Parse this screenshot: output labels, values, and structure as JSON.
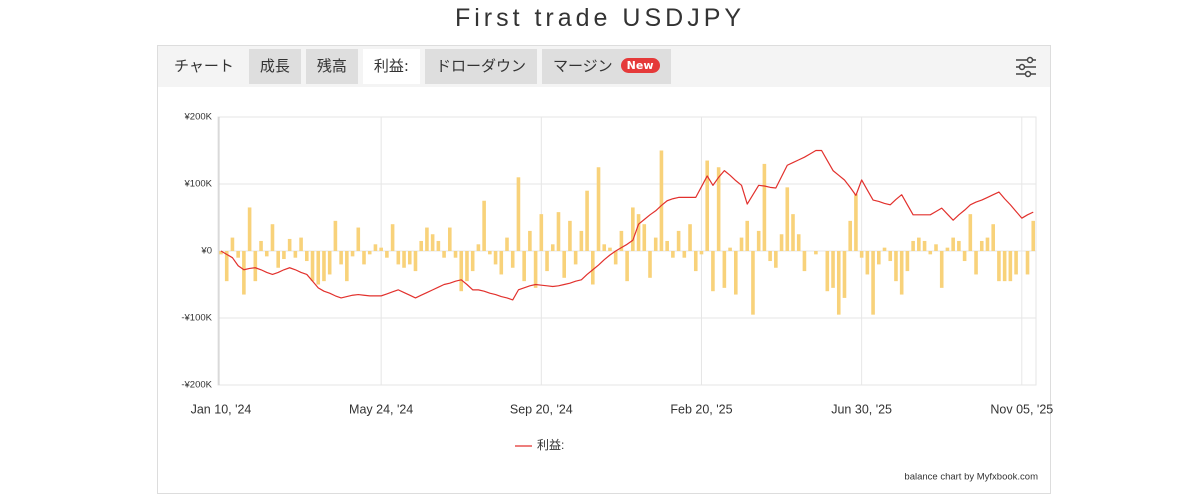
{
  "title": "First trade USDJPY",
  "tabs": [
    {
      "label": "チャート"
    },
    {
      "label": "成長"
    },
    {
      "label": "残高"
    },
    {
      "label": "利益:"
    },
    {
      "label": "ドローダウン"
    },
    {
      "label": "マージン",
      "badge": "New"
    }
  ],
  "active_tab": 3,
  "chart_data": {
    "type": "bar",
    "grid": true,
    "legend": "bottom",
    "credit": "balance chart by Myfxbook.com",
    "categories": [
      "Jan 10, '24",
      null,
      null,
      null,
      null,
      null,
      null,
      null,
      null,
      null,
      null,
      null,
      null,
      null,
      null,
      null,
      null,
      null,
      null,
      null,
      null,
      null,
      null,
      null,
      null,
      null,
      null,
      null,
      "May 24, '24",
      null,
      null,
      null,
      null,
      null,
      null,
      null,
      null,
      null,
      null,
      null,
      null,
      null,
      null,
      null,
      null,
      null,
      null,
      null,
      null,
      null,
      null,
      null,
      null,
      null,
      null,
      null,
      "Sep 20, '24",
      null,
      null,
      null,
      null,
      null,
      null,
      null,
      null,
      null,
      null,
      null,
      null,
      null,
      null,
      null,
      null,
      null,
      null,
      null,
      null,
      null,
      null,
      null,
      null,
      null,
      null,
      null,
      "Feb 20, '25",
      null,
      null,
      null,
      null,
      null,
      null,
      null,
      null,
      null,
      null,
      null,
      null,
      null,
      null,
      null,
      null,
      null,
      null,
      null,
      null,
      null,
      null,
      null,
      null,
      null,
      null,
      null,
      "Jun 30, '25",
      null,
      null,
      null,
      null,
      null,
      null,
      null,
      null,
      null,
      null,
      null,
      null,
      null,
      null,
      null,
      null,
      null,
      null,
      null,
      null,
      null,
      null,
      null,
      null,
      null,
      null,
      null,
      "Nov 05, '25",
      null,
      null
    ],
    "ylim": [
      -200000,
      200000
    ],
    "yticks": [
      {
        "value": -200000,
        "label": "-¥200K"
      },
      {
        "value": -100000,
        "label": "-¥100K"
      },
      {
        "value": 0,
        "label": "¥0"
      },
      {
        "value": 100000,
        "label": "¥100K"
      },
      {
        "value": 200000,
        "label": "¥200K"
      }
    ],
    "series": [
      {
        "type": "bar",
        "color": "#f8d27a",
        "values": [
          -5000,
          -45000,
          20000,
          -10000,
          -65000,
          65000,
          -45000,
          15000,
          -8000,
          40000,
          -25000,
          -12000,
          18000,
          -10000,
          20000,
          -15000,
          -45000,
          -50000,
          -45000,
          -35000,
          45000,
          -20000,
          -45000,
          -8000,
          35000,
          -20000,
          -5000,
          10000,
          5000,
          -10000,
          40000,
          -20000,
          -25000,
          -20000,
          -30000,
          15000,
          35000,
          25000,
          15000,
          -10000,
          35000,
          -10000,
          -60000,
          -45000,
          -30000,
          10000,
          75000,
          -5000,
          -20000,
          -35000,
          20000,
          -25000,
          110000,
          -45000,
          30000,
          -55000,
          55000,
          -30000,
          10000,
          58000,
          -40000,
          45000,
          -20000,
          30000,
          90000,
          -50000,
          125000,
          10000,
          5000,
          -20000,
          30000,
          -45000,
          65000,
          55000,
          40000,
          -40000,
          20000,
          150000,
          15000,
          -10000,
          30000,
          -10000,
          40000,
          -30000,
          -5000,
          135000,
          -60000,
          125000,
          -55000,
          5000,
          -65000,
          20000,
          45000,
          -95000,
          30000,
          130000,
          -15000,
          -25000,
          25000,
          95000,
          55000,
          25000,
          -30000,
          0,
          -5000,
          0,
          -60000,
          -55000,
          -95000,
          -70000,
          45000,
          85000,
          -10000,
          -35000,
          -95000,
          -20000,
          5000,
          -15000,
          -45000,
          -65000,
          -30000,
          15000,
          20000,
          15000,
          -5000,
          10000,
          -55000,
          5000,
          20000,
          15000,
          -15000,
          55000,
          -35000,
          15000,
          20000,
          40000,
          -45000,
          -45000,
          -45000,
          -35000,
          0,
          -35000,
          45000
        ]
      },
      {
        "type": "line",
        "name": "利益:",
        "color": "#e2312d",
        "values": [
          0,
          -5000,
          -10000,
          -22000,
          -28000,
          -26000,
          -25000,
          -28000,
          -32000,
          -35000,
          -32000,
          -28000,
          -25000,
          -28000,
          -32000,
          -35000,
          -45000,
          -55000,
          -60000,
          -63000,
          -67000,
          -70000,
          -68000,
          -66000,
          -65000,
          -66000,
          -67000,
          -67000,
          -67000,
          -64000,
          -61000,
          -58000,
          -62000,
          -66000,
          -70000,
          -66000,
          -62000,
          -58000,
          -54000,
          -50000,
          -48000,
          -45000,
          -43000,
          -50000,
          -58000,
          -58000,
          -60000,
          -63000,
          -65000,
          -68000,
          -70000,
          -73000,
          -58000,
          -55000,
          -52000,
          -50000,
          -51000,
          -52000,
          -53000,
          -52000,
          -50000,
          -48000,
          -45000,
          -43000,
          -35000,
          -28000,
          -21000,
          -13000,
          -6000,
          0,
          5000,
          10000,
          16000,
          40000,
          47000,
          54000,
          60000,
          68000,
          75000,
          78000,
          80000,
          80000,
          80000,
          80000,
          96000,
          112000,
          98000,
          110000,
          120000,
          113000,
          105000,
          98000,
          70000,
          84000,
          98000,
          97000,
          95000,
          94000,
          111000,
          128000,
          132000,
          136000,
          140000,
          145000,
          150000,
          150000,
          135000,
          120000,
          113000,
          106000,
          95000,
          83000,
          106000,
          91000,
          76000,
          74000,
          71000,
          69000,
          77000,
          84000,
          69000,
          54000,
          54000,
          54000,
          54000,
          59000,
          64000,
          55000,
          46000,
          54000,
          61000,
          69000,
          73000,
          76000,
          80000,
          84000,
          88000,
          78000,
          69000,
          59000,
          49000,
          54000,
          58000
        ]
      }
    ]
  }
}
